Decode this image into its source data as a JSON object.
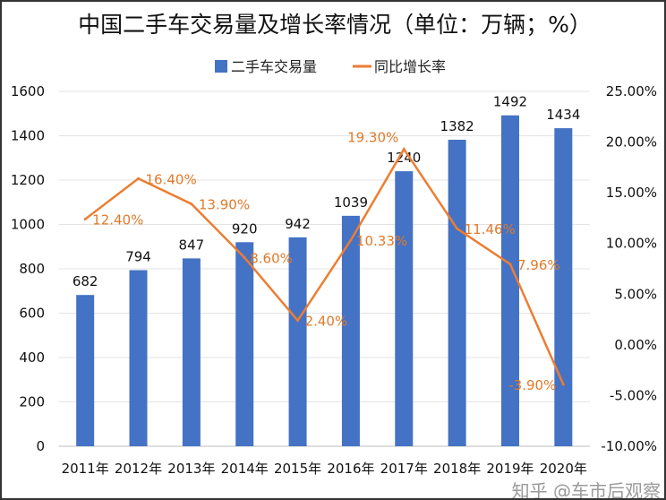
{
  "chart_data": {
    "type": "bar+line",
    "title": "中国二手车交易量及增长率情况（单位：万辆；%）",
    "categories": [
      "2011年",
      "2012年",
      "2013年",
      "2014年",
      "2015年",
      "2016年",
      "2017年",
      "2018年",
      "2019年",
      "2020年"
    ],
    "series": [
      {
        "name": "二手车交易量",
        "type": "bar",
        "axis": "left",
        "color": "#4472C4",
        "values": [
          682,
          794,
          847,
          920,
          942,
          1039,
          1240,
          1382,
          1492,
          1434
        ],
        "labels": [
          "682",
          "794",
          "847",
          "920",
          "942",
          "1039",
          "1240",
          "1382",
          "1492",
          "1434"
        ]
      },
      {
        "name": "同比增长率",
        "type": "line",
        "axis": "right",
        "color": "#ED7D31",
        "values": [
          12.4,
          16.4,
          13.9,
          8.6,
          2.4,
          10.33,
          19.3,
          11.46,
          7.96,
          -3.9
        ],
        "labels": [
          "12.40%",
          "16.40%",
          "13.90%",
          "8.60%",
          "2.40%",
          "10.33%",
          "19.30%",
          "11.46%",
          "7.96%",
          "-3.90%"
        ]
      }
    ],
    "y_left": {
      "range": [
        0,
        1600
      ],
      "ticks": [
        "0",
        "200",
        "400",
        "600",
        "800",
        "1000",
        "1200",
        "1400",
        "1600"
      ]
    },
    "y_right": {
      "range": [
        -10,
        25
      ],
      "ticks": [
        "-10.00%",
        "-5.00%",
        "0.00%",
        "5.00%",
        "10.00%",
        "15.00%",
        "20.00%",
        "25.00%"
      ]
    },
    "grid": true,
    "legend_position": "top"
  },
  "watermark": "知乎 @车市后观察"
}
